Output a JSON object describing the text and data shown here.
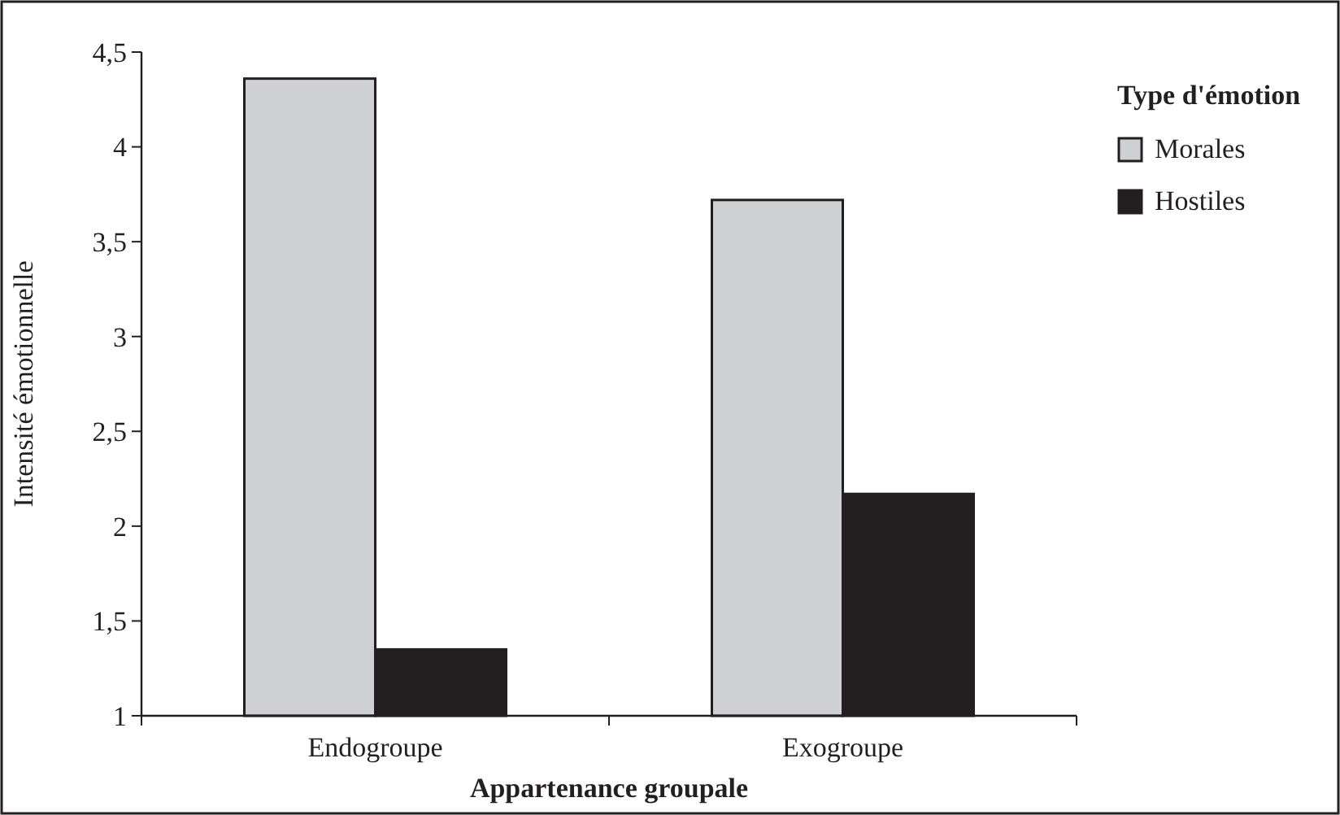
{
  "chart_data": {
    "type": "bar",
    "xlabel": "Appartenance groupale",
    "ylabel": "Intensité émotionnelle",
    "legend_title": "Type d'émotion",
    "categories": [
      "Endogroupe",
      "Exogroupe"
    ],
    "series": [
      {
        "name": "Morales",
        "color": "#cfd0d2",
        "values": [
          4.36,
          3.72
        ]
      },
      {
        "name": "Hostiles",
        "color": "#231f20",
        "values": [
          1.35,
          2.17
        ]
      }
    ],
    "ylim": [
      1,
      4.5
    ],
    "yticks": [
      1,
      {
        "value": 1.5,
        "label": "1,5"
      },
      2,
      {
        "value": 2.5,
        "label": "2,5"
      },
      3,
      {
        "value": 3.5,
        "label": "3,5"
      },
      4,
      {
        "value": 4.5,
        "label": "4,5"
      }
    ],
    "grid": false,
    "legend": "top right"
  }
}
